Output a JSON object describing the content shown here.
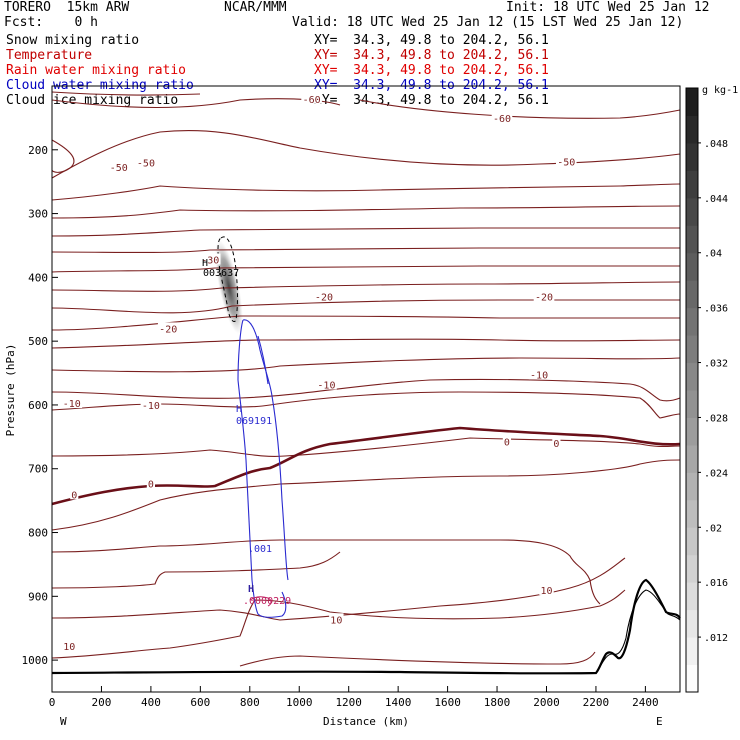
{
  "header": {
    "model": "TORERO  15km ARW",
    "center": "NCAR/MMM",
    "init": "Init: 18 UTC Wed 25 Jan 12",
    "fcst": "Fcst:    0 h",
    "valid": "Valid: 18 UTC Wed 25 Jan 12 (15 LST Wed 25 Jan 12)"
  },
  "fields": [
    {
      "name": "Snow mixing ratio",
      "xy": "XY=  34.3, 49.8 to 204.2, 56.1",
      "color": "#000000"
    },
    {
      "name": "Temperature",
      "xy": "XY=  34.3, 49.8 to 204.2, 56.1",
      "color": "#c00000"
    },
    {
      "name": "Rain water mixing ratio",
      "xy": "XY=  34.3, 49.8 to 204.2, 56.1",
      "color": "#e00000"
    },
    {
      "name": "Cloud water mixing ratio",
      "xy": "XY=  34.3, 49.8 to 204.2, 56.1",
      "color": "#0000c0"
    },
    {
      "name": "Cloud ice mixing ratio",
      "xy": "XY=  34.3, 49.8 to 204.2, 56.1",
      "color": "#000000"
    }
  ],
  "colors": {
    "temperature": "#7a1f1f",
    "cloud_water": "#2a2ad0",
    "rain": "#c02060",
    "terrain": "#000000",
    "frame": "#000000"
  },
  "chart_data": {
    "type": "contour-cross-section",
    "xlabel": "Distance (km)",
    "ylabel": "Pressure (hPa)",
    "xlim": [
      0,
      2540
    ],
    "ylim": [
      1050,
      100
    ],
    "x_ticks": [
      0,
      200,
      400,
      600,
      800,
      1000,
      1200,
      1400,
      1600,
      1800,
      2000,
      2200,
      2400
    ],
    "y_ticks": [
      200,
      300,
      400,
      500,
      600,
      700,
      800,
      900,
      1000
    ],
    "x_end_labels": {
      "left": "W",
      "right": "E"
    },
    "colorbar": {
      "unit": "g kg-1",
      "ticks": [
        ".012",
        ".016",
        ".02",
        ".024",
        ".028",
        ".032",
        ".036",
        ".04",
        ".044",
        ".048"
      ],
      "range": [
        0.008,
        0.052
      ]
    },
    "temperature_labels": [
      {
        "text": "-60",
        "x": 1050,
        "p": 120
      },
      {
        "text": "-60",
        "x": 1820,
        "p": 150
      },
      {
        "text": "-50",
        "x": 270,
        "p": 227
      },
      {
        "text": "-50",
        "x": 380,
        "p": 220
      },
      {
        "text": "-50",
        "x": 2080,
        "p": 218
      },
      {
        "text": "-30",
        "x": 640,
        "p": 372
      },
      {
        "text": "-20",
        "x": 470,
        "p": 480
      },
      {
        "text": "-20",
        "x": 1100,
        "p": 430
      },
      {
        "text": "-20",
        "x": 1990,
        "p": 430
      },
      {
        "text": "-10",
        "x": 400,
        "p": 600
      },
      {
        "text": "-10",
        "x": 1110,
        "p": 568
      },
      {
        "text": "-10",
        "x": 1970,
        "p": 552
      },
      {
        "text": "-10",
        "x": 80,
        "p": 597
      },
      {
        "text": "0",
        "x": 90,
        "p": 740
      },
      {
        "text": "0",
        "x": 400,
        "p": 723
      },
      {
        "text": "0",
        "x": 1840,
        "p": 657
      },
      {
        "text": "0",
        "x": 2040,
        "p": 660
      },
      {
        "text": "10",
        "x": 1150,
        "p": 936
      },
      {
        "text": "10",
        "x": 2000,
        "p": 890
      },
      {
        "text": "10",
        "x": 70,
        "p": 978
      }
    ],
    "cloud_ice_max": {
      "label": "H",
      "value": "003637",
      "x": 720,
      "p": 378
    },
    "cloud_water_max": {
      "label": "H",
      "value": "069191",
      "x": 780,
      "p": 640
    },
    "cloud_water_contour": {
      "label": ".001",
      "x": 860,
      "p": 815
    },
    "rain_max": {
      "label": "H",
      "value": ".0000229",
      "x": 820,
      "p": 920
    }
  }
}
